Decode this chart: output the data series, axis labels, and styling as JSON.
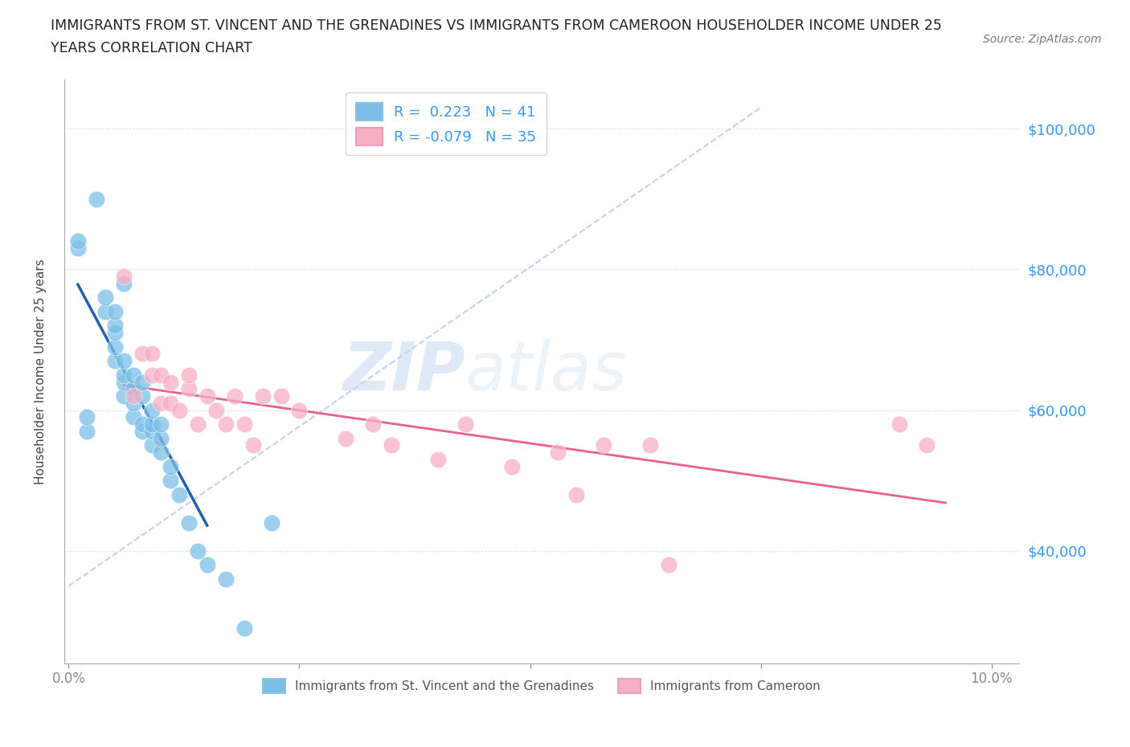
{
  "title_line1": "IMMIGRANTS FROM ST. VINCENT AND THE GRENADINES VS IMMIGRANTS FROM CAMEROON HOUSEHOLDER INCOME UNDER 25",
  "title_line2": "YEARS CORRELATION CHART",
  "source": "Source: ZipAtlas.com",
  "ylabel": "Householder Income Under 25 years",
  "ytick_labels": [
    "$40,000",
    "$60,000",
    "$80,000",
    "$100,000"
  ],
  "ytick_values": [
    40000,
    60000,
    80000,
    100000
  ],
  "xlim": [
    -0.0005,
    0.103
  ],
  "ylim": [
    24000,
    107000
  ],
  "r1": 0.223,
  "n1": 41,
  "r2": -0.079,
  "n2": 35,
  "blue_color": "#7bbfe8",
  "pink_color": "#f8afc4",
  "blue_line_color": "#2060b0",
  "pink_line_color": "#e86090",
  "dashed_line_color": "#b0c8e0",
  "watermark_zip": "ZIP",
  "watermark_atlas": "atlas",
  "legend1": "Immigrants from St. Vincent and the Grenadines",
  "legend2": "Immigrants from Cameroon",
  "blue_scatter_x": [
    0.001,
    0.001,
    0.002,
    0.002,
    0.003,
    0.004,
    0.004,
    0.005,
    0.005,
    0.005,
    0.005,
    0.005,
    0.006,
    0.006,
    0.006,
    0.006,
    0.006,
    0.007,
    0.007,
    0.007,
    0.007,
    0.008,
    0.008,
    0.008,
    0.008,
    0.009,
    0.009,
    0.009,
    0.009,
    0.01,
    0.01,
    0.01,
    0.011,
    0.011,
    0.012,
    0.013,
    0.014,
    0.015,
    0.017,
    0.019,
    0.022
  ],
  "blue_scatter_y": [
    83000,
    84000,
    57000,
    59000,
    90000,
    74000,
    76000,
    67000,
    69000,
    71000,
    72000,
    74000,
    62000,
    64000,
    65000,
    67000,
    78000,
    59000,
    61000,
    63000,
    65000,
    57000,
    58000,
    62000,
    64000,
    55000,
    57000,
    58000,
    60000,
    54000,
    56000,
    58000,
    50000,
    52000,
    48000,
    44000,
    40000,
    38000,
    36000,
    29000,
    44000
  ],
  "pink_scatter_x": [
    0.006,
    0.007,
    0.008,
    0.009,
    0.009,
    0.01,
    0.01,
    0.011,
    0.011,
    0.012,
    0.013,
    0.013,
    0.014,
    0.015,
    0.016,
    0.017,
    0.018,
    0.019,
    0.02,
    0.021,
    0.023,
    0.025,
    0.03,
    0.033,
    0.035,
    0.04,
    0.043,
    0.048,
    0.053,
    0.055,
    0.058,
    0.063,
    0.065,
    0.09,
    0.093
  ],
  "pink_scatter_y": [
    79000,
    62000,
    68000,
    65000,
    68000,
    61000,
    65000,
    61000,
    64000,
    60000,
    63000,
    65000,
    58000,
    62000,
    60000,
    58000,
    62000,
    58000,
    55000,
    62000,
    62000,
    60000,
    56000,
    58000,
    55000,
    53000,
    58000,
    52000,
    54000,
    48000,
    55000,
    55000,
    38000,
    58000,
    55000
  ]
}
